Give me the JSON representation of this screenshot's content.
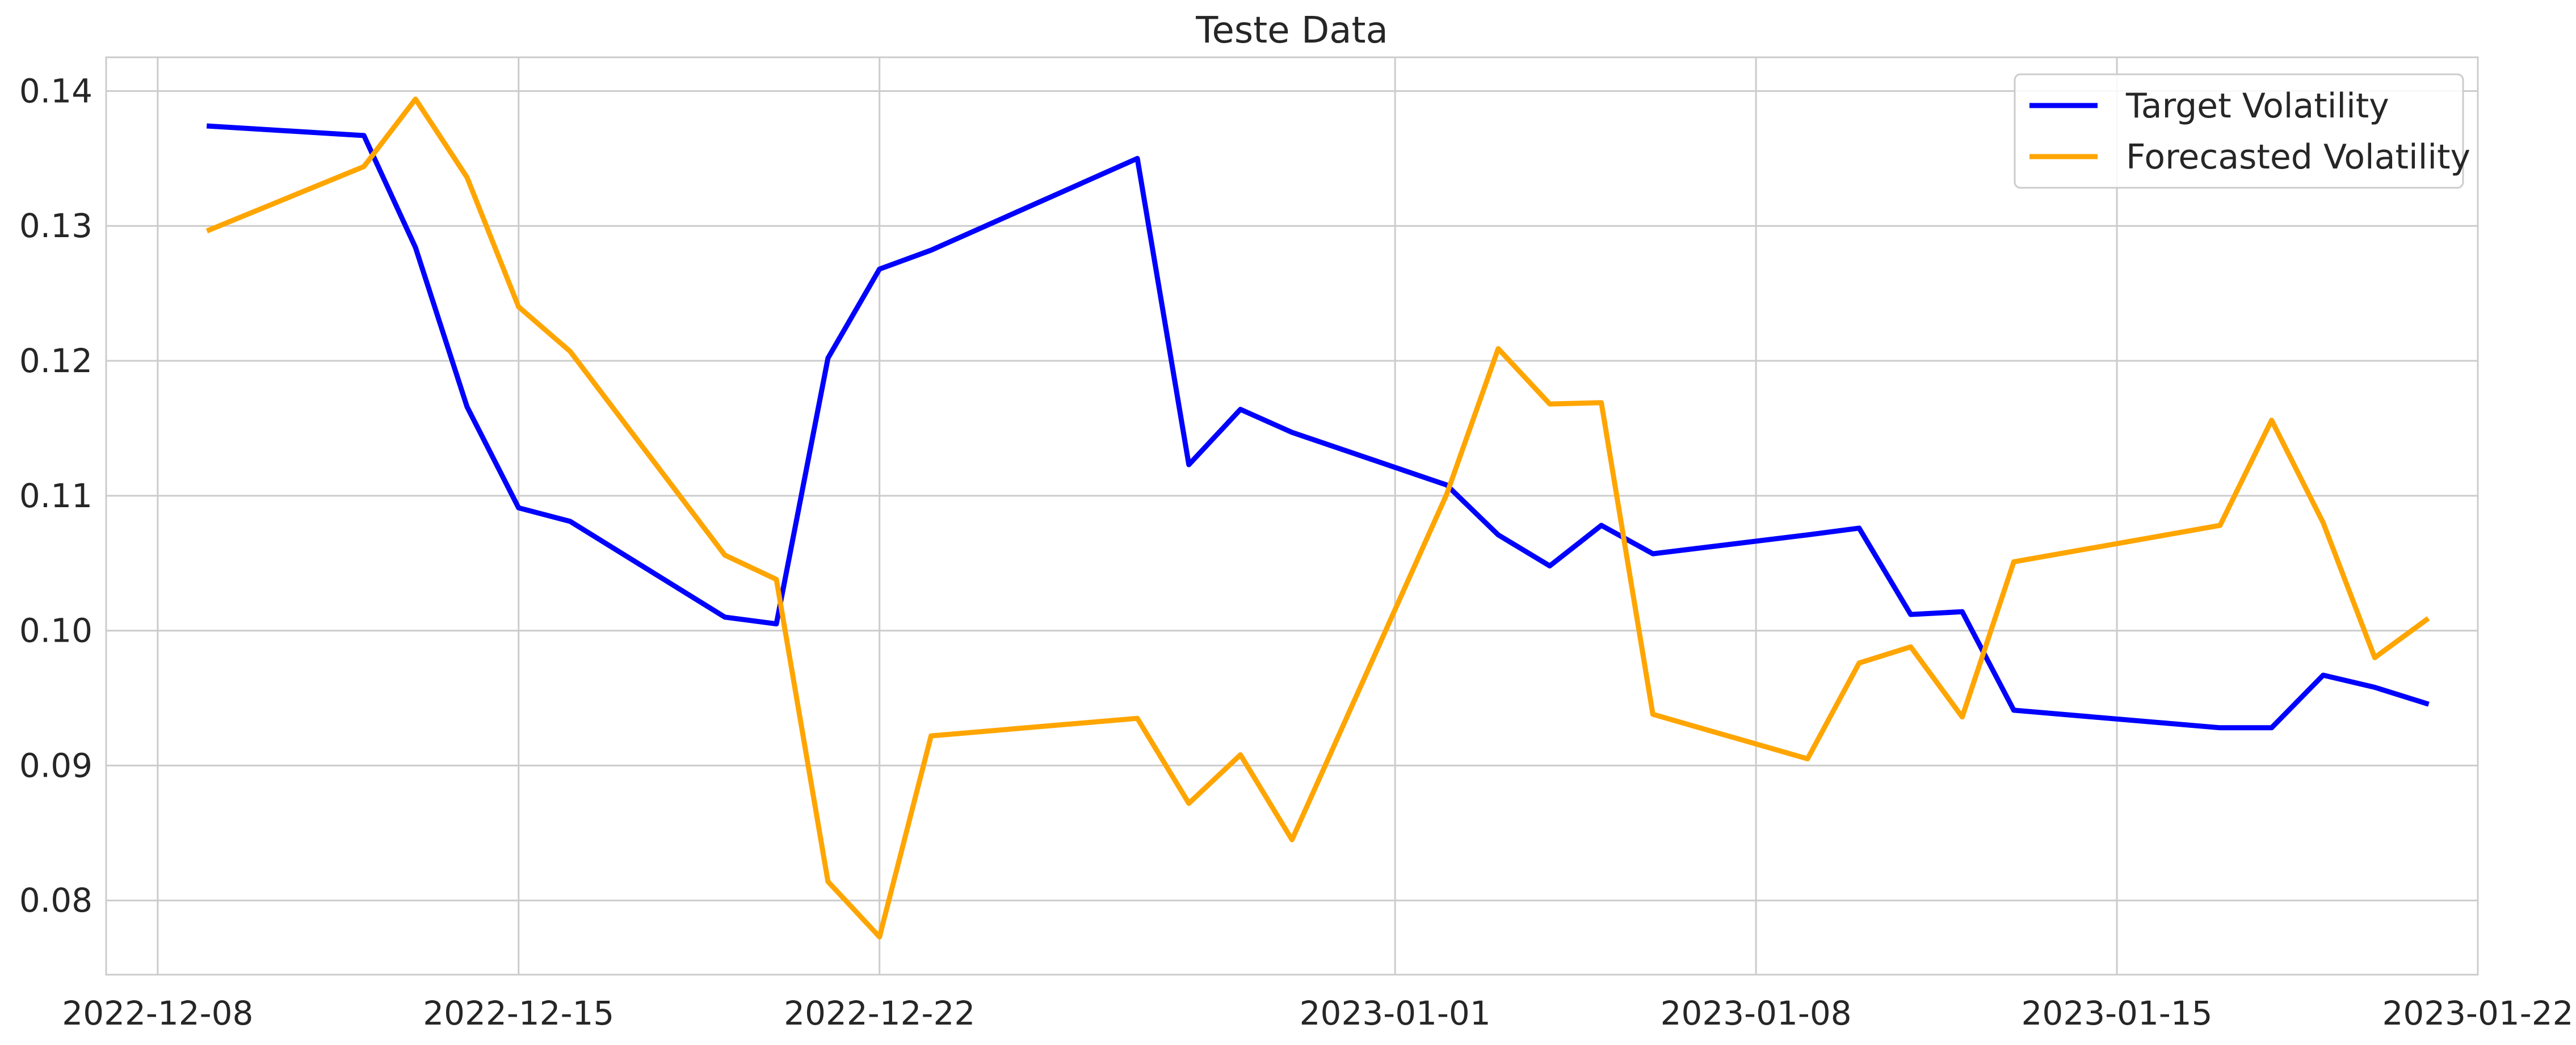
{
  "chart_data": {
    "type": "line",
    "title": "Teste Data",
    "xlabel": "",
    "ylabel": "",
    "x_axis": {
      "type": "date",
      "range": [
        "2022-12-07",
        "2023-01-22"
      ],
      "ticks": [
        "2022-12-08",
        "2022-12-15",
        "2022-12-22",
        "2023-01-01",
        "2023-01-08",
        "2023-01-15",
        "2023-01-22"
      ],
      "tick_labels": [
        "2022-12-08",
        "2022-12-15",
        "2022-12-22",
        "2023-01-01",
        "2023-01-08",
        "2023-01-15",
        "2023-01-22"
      ]
    },
    "y_axis": {
      "range": [
        0.0745,
        0.1425
      ],
      "ticks": [
        0.08,
        0.09,
        0.1,
        0.11,
        0.12,
        0.13,
        0.14
      ],
      "tick_labels": [
        "0.08",
        "0.09",
        "0.10",
        "0.11",
        "0.12",
        "0.13",
        "0.14"
      ]
    },
    "grid": true,
    "legend": {
      "placement": "top-right"
    },
    "x": [
      "2022-12-09",
      "2022-12-12",
      "2022-12-13",
      "2022-12-14",
      "2022-12-15",
      "2022-12-16",
      "2022-12-19",
      "2022-12-20",
      "2022-12-21",
      "2022-12-22",
      "2022-12-23",
      "2022-12-27",
      "2022-12-28",
      "2022-12-29",
      "2022-12-30",
      "2023-01-02",
      "2023-01-03",
      "2023-01-04",
      "2023-01-05",
      "2023-01-06",
      "2023-01-09",
      "2023-01-10",
      "2023-01-11",
      "2023-01-12",
      "2023-01-13",
      "2023-01-17",
      "2023-01-18",
      "2023-01-19",
      "2023-01-20",
      "2023-01-21"
    ],
    "series": [
      {
        "name": "Target Volatility",
        "color": "#0000ff",
        "values": [
          0.1374,
          0.1367,
          0.1284,
          0.1166,
          0.1091,
          0.1081,
          0.101,
          0.1005,
          0.1202,
          0.1268,
          0.1282,
          0.135,
          0.1123,
          0.1164,
          0.1147,
          0.1108,
          0.1071,
          0.1048,
          0.1078,
          0.1057,
          0.1071,
          0.1076,
          0.1012,
          0.1014,
          0.0941,
          0.0928,
          0.0928,
          0.0967,
          0.0958,
          0.0946
        ]
      },
      {
        "name": "Forecasted Volatility",
        "color": "#ffa500",
        "values": [
          0.1297,
          0.1344,
          0.1394,
          0.1336,
          0.124,
          0.1207,
          0.1056,
          0.1038,
          0.0814,
          0.0773,
          0.0922,
          0.0935,
          0.0872,
          0.0908,
          0.0845,
          0.1101,
          0.1209,
          0.1168,
          0.1169,
          0.0938,
          0.0905,
          0.0976,
          0.0988,
          0.0936,
          0.1051,
          0.1078,
          0.1156,
          0.108,
          0.098,
          0.1008
        ]
      }
    ]
  }
}
